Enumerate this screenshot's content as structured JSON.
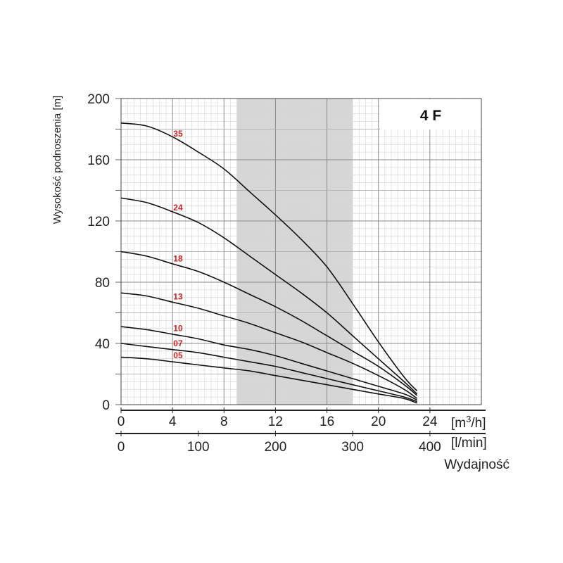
{
  "chart_data": {
    "type": "line",
    "model_label": "4 F",
    "ylabel": "Wysokość podnoszenia [m]",
    "xlabel": "Wydajność",
    "x_unit_primary": "[m3/h]",
    "x_unit_secondary": "[l/min]",
    "x_range": [
      0,
      28
    ],
    "ylim": [
      0,
      200
    ],
    "y_ticks": [
      "0",
      "40",
      "80",
      "120",
      "160",
      "200"
    ],
    "x_ticks_primary": [
      "0",
      "4",
      "8",
      "12",
      "16",
      "20",
      "24"
    ],
    "x_ticks_secondary": [
      "0",
      "100",
      "200",
      "300",
      "400"
    ],
    "grid": true,
    "recommended_range_m3h": [
      9,
      18
    ],
    "series": [
      {
        "name": "35",
        "x": [
          0,
          2,
          4,
          6,
          8,
          10,
          12,
          14,
          16,
          18,
          20,
          22,
          23
        ],
        "y": [
          184,
          182,
          175,
          165,
          154,
          139,
          124,
          108,
          90,
          66,
          41,
          18,
          9
        ]
      },
      {
        "name": "24",
        "x": [
          0,
          2,
          4,
          6,
          8,
          10,
          12,
          14,
          16,
          18,
          20,
          22,
          23
        ],
        "y": [
          135,
          132,
          126,
          119,
          109,
          97,
          85,
          73,
          60,
          45,
          30,
          15,
          7
        ]
      },
      {
        "name": "18",
        "x": [
          0,
          2,
          4,
          6,
          8,
          10,
          12,
          14,
          16,
          18,
          20,
          22,
          23
        ],
        "y": [
          100,
          97,
          92,
          87,
          80,
          72,
          64,
          55,
          45,
          35,
          25,
          13,
          6
        ]
      },
      {
        "name": "13",
        "x": [
          0,
          2,
          4,
          6,
          8,
          10,
          12,
          14,
          16,
          18,
          20,
          22,
          23
        ],
        "y": [
          73,
          71,
          67,
          63,
          58,
          53,
          47,
          41,
          34,
          27,
          19,
          10,
          4
        ]
      },
      {
        "name": "10",
        "x": [
          0,
          2,
          4,
          6,
          8,
          10,
          12,
          14,
          16,
          18,
          20,
          22,
          23
        ],
        "y": [
          51,
          49,
          46,
          43,
          39,
          36,
          32,
          27,
          22,
          17,
          12,
          7,
          3
        ]
      },
      {
        "name": "07",
        "x": [
          0,
          2,
          4,
          6,
          8,
          10,
          12,
          14,
          16,
          18,
          20,
          22,
          23
        ],
        "y": [
          40,
          38,
          36,
          34,
          31,
          28,
          25,
          21,
          17,
          13,
          9,
          5,
          2
        ]
      },
      {
        "name": "05",
        "x": [
          0,
          2,
          4,
          6,
          8,
          10,
          12,
          14,
          16,
          18,
          20,
          22,
          23
        ],
        "y": [
          31,
          30,
          28,
          26,
          24,
          22,
          19,
          16,
          13,
          10,
          7,
          4,
          1
        ]
      }
    ]
  }
}
